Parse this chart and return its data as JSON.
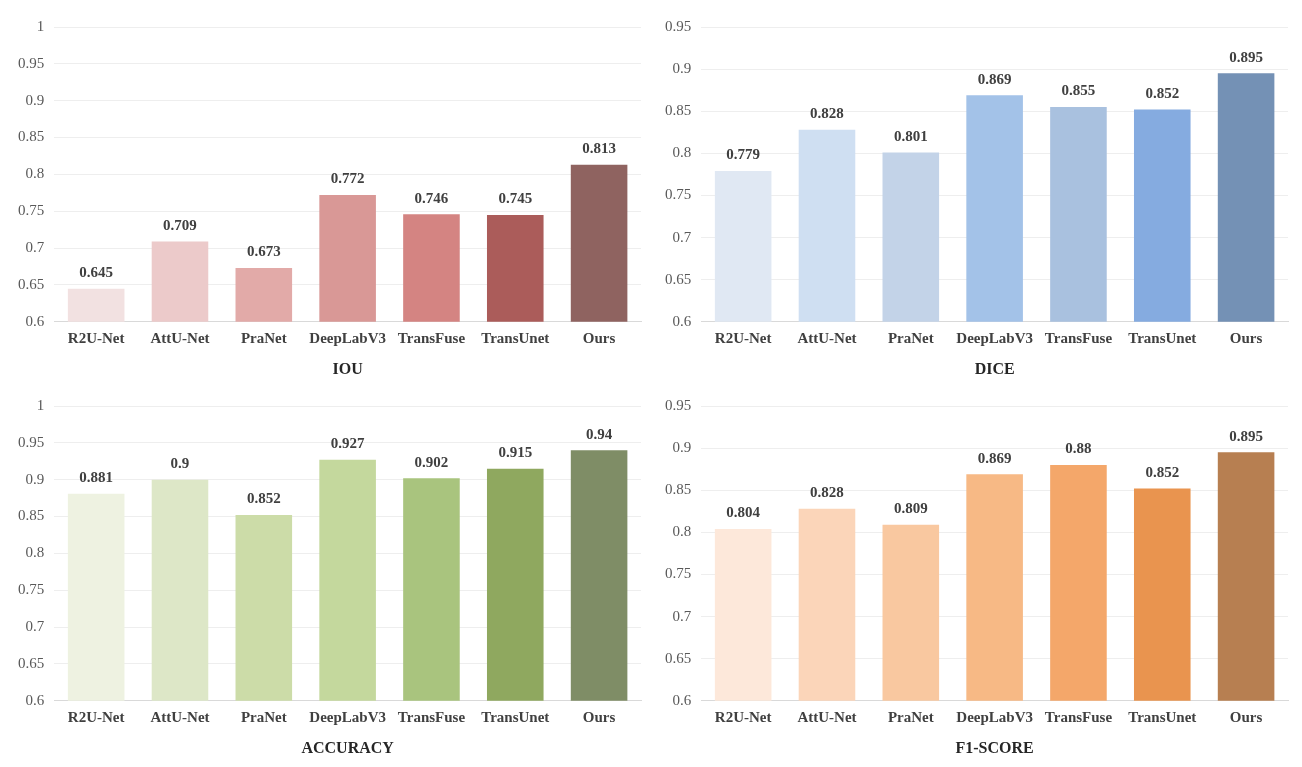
{
  "chart_data": [
    {
      "type": "bar",
      "xlabel": "IOU",
      "categories": [
        "R2U-Net",
        "AttU-Net",
        "PraNet",
        "DeepLabV3",
        "TransFuse",
        "TransUnet",
        "Ours"
      ],
      "values": [
        0.645,
        0.709,
        0.673,
        0.772,
        0.746,
        0.745,
        0.813
      ],
      "colors": [
        "#f2e1e1",
        "#eccaca",
        "#e2aaa8",
        "#d99896",
        "#d48482",
        "#ab5c5a",
        "#8f6360"
      ],
      "ylim": [
        0.6,
        1
      ],
      "yticks": [
        0.6,
        0.65,
        0.7,
        0.75,
        0.8,
        0.85,
        0.9,
        0.95,
        1
      ],
      "grid": "y",
      "data_labels": true
    },
    {
      "type": "bar",
      "xlabel": "DICE",
      "categories": [
        "R2U-Net",
        "AttU-Net",
        "PraNet",
        "DeepLabV3",
        "TransFuse",
        "TransUnet",
        "Ours"
      ],
      "values": [
        0.779,
        0.828,
        0.801,
        0.869,
        0.855,
        0.852,
        0.895
      ],
      "colors": [
        "#e0e8f3",
        "#cfdff2",
        "#c3d3e8",
        "#a3c2e8",
        "#a9c1df",
        "#85abe0",
        "#7491b5"
      ],
      "ylim": [
        0.6,
        0.95
      ],
      "yticks": [
        0.6,
        0.65,
        0.7,
        0.75,
        0.8,
        0.85,
        0.9,
        0.95
      ],
      "grid": "y",
      "data_labels": true
    },
    {
      "type": "bar",
      "xlabel": "ACCURACY",
      "categories": [
        "R2U-Net",
        "AttU-Net",
        "PraNet",
        "DeepLabV3",
        "TransFuse",
        "TransUnet",
        "Ours"
      ],
      "values": [
        0.881,
        0.9,
        0.852,
        0.927,
        0.902,
        0.915,
        0.94
      ],
      "colors": [
        "#eef2e1",
        "#dde7c7",
        "#ccdca8",
        "#c4d89d",
        "#a9c47e",
        "#8fa85f",
        "#7f8d66"
      ],
      "ylim": [
        0.6,
        1
      ],
      "yticks": [
        0.6,
        0.65,
        0.7,
        0.75,
        0.8,
        0.85,
        0.9,
        0.95,
        1
      ],
      "grid": "y",
      "data_labels": true
    },
    {
      "type": "bar",
      "xlabel": "F1-SCORE",
      "categories": [
        "R2U-Net",
        "AttU-Net",
        "PraNet",
        "DeepLabV3",
        "TransFuse",
        "TransUnet",
        "Ours"
      ],
      "values": [
        0.804,
        0.828,
        0.809,
        0.869,
        0.88,
        0.852,
        0.895
      ],
      "colors": [
        "#fde8da",
        "#fbd5b9",
        "#f9c8a0",
        "#f7b985",
        "#f4a76a",
        "#e9944f",
        "#b77f51"
      ],
      "ylim": [
        0.6,
        0.95
      ],
      "yticks": [
        0.6,
        0.65,
        0.7,
        0.75,
        0.8,
        0.85,
        0.9,
        0.95
      ],
      "grid": "y",
      "data_labels": true
    }
  ]
}
